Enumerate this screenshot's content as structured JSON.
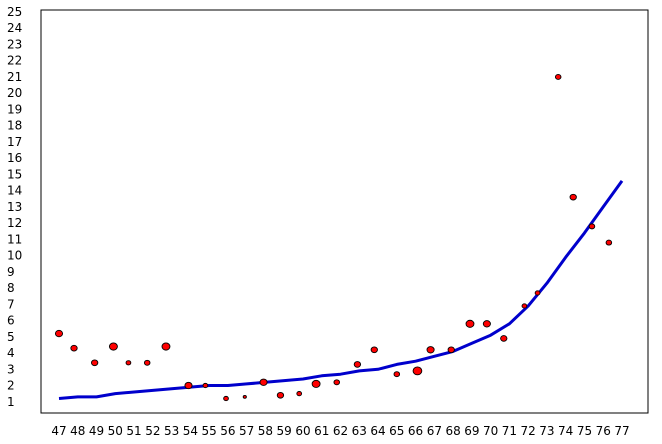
{
  "chart_data": {
    "type": "scatter",
    "title": "",
    "xlabel": "",
    "ylabel": "",
    "xlim": [
      46,
      78
    ],
    "ylim": [
      0,
      25
    ],
    "grid": false,
    "x_ticks": [
      47,
      48,
      49,
      50,
      51,
      52,
      53,
      54,
      55,
      56,
      57,
      58,
      59,
      60,
      61,
      62,
      63,
      64,
      65,
      66,
      67,
      68,
      69,
      70,
      71,
      72,
      73,
      74,
      75,
      76,
      77
    ],
    "y_ticks": [
      1,
      2,
      3,
      4,
      5,
      6,
      7,
      8,
      9,
      10,
      11,
      12,
      13,
      14,
      15,
      16,
      17,
      18,
      19,
      20,
      21,
      22,
      23,
      24,
      25
    ],
    "series": [
      {
        "kind": "points",
        "color": "#ff0000",
        "outline": "#000000",
        "points": [
          {
            "x": 47,
            "y": 5.2,
            "s": 0.9
          },
          {
            "x": 47.8,
            "y": 4.3,
            "s": 0.8
          },
          {
            "x": 48.9,
            "y": 3.4,
            "s": 0.8
          },
          {
            "x": 49.9,
            "y": 4.4,
            "s": 1.0
          },
          {
            "x": 50.7,
            "y": 3.4,
            "s": 0.6
          },
          {
            "x": 51.7,
            "y": 3.4,
            "s": 0.7
          },
          {
            "x": 52.7,
            "y": 4.4,
            "s": 1.0
          },
          {
            "x": 53.9,
            "y": 2.0,
            "s": 0.9
          },
          {
            "x": 54.8,
            "y": 2.0,
            "s": 0.6
          },
          {
            "x": 55.9,
            "y": 1.2,
            "s": 0.6
          },
          {
            "x": 56.9,
            "y": 1.3,
            "s": 0.4
          },
          {
            "x": 57.9,
            "y": 2.2,
            "s": 0.9
          },
          {
            "x": 58.8,
            "y": 1.4,
            "s": 0.8
          },
          {
            "x": 59.8,
            "y": 1.5,
            "s": 0.6
          },
          {
            "x": 60.7,
            "y": 2.1,
            "s": 1.0
          },
          {
            "x": 61.8,
            "y": 2.2,
            "s": 0.7
          },
          {
            "x": 62.9,
            "y": 3.3,
            "s": 0.8
          },
          {
            "x": 63.8,
            "y": 4.2,
            "s": 0.8
          },
          {
            "x": 65.0,
            "y": 2.7,
            "s": 0.7
          },
          {
            "x": 66.1,
            "y": 2.9,
            "s": 1.1
          },
          {
            "x": 66.8,
            "y": 4.2,
            "s": 0.9
          },
          {
            "x": 67.9,
            "y": 4.2,
            "s": 0.8
          },
          {
            "x": 68.9,
            "y": 5.8,
            "s": 1.0
          },
          {
            "x": 69.8,
            "y": 5.8,
            "s": 0.9
          },
          {
            "x": 70.7,
            "y": 4.9,
            "s": 0.8
          },
          {
            "x": 71.8,
            "y": 6.9,
            "s": 0.6
          },
          {
            "x": 72.5,
            "y": 7.7,
            "s": 0.6
          },
          {
            "x": 73.6,
            "y": 21.0,
            "s": 0.7
          },
          {
            "x": 74.4,
            "y": 13.6,
            "s": 0.8
          },
          {
            "x": 75.4,
            "y": 11.8,
            "s": 0.7
          },
          {
            "x": 76.3,
            "y": 10.8,
            "s": 0.7
          }
        ]
      },
      {
        "kind": "line",
        "color": "#0000cc",
        "points": [
          {
            "x": 47,
            "y": 1.2
          },
          {
            "x": 48,
            "y": 1.3
          },
          {
            "x": 49,
            "y": 1.3
          },
          {
            "x": 50,
            "y": 1.5
          },
          {
            "x": 51,
            "y": 1.6
          },
          {
            "x": 52,
            "y": 1.7
          },
          {
            "x": 53,
            "y": 1.8
          },
          {
            "x": 54,
            "y": 1.9
          },
          {
            "x": 55,
            "y": 2.0
          },
          {
            "x": 56,
            "y": 2.0
          },
          {
            "x": 57,
            "y": 2.1
          },
          {
            "x": 58,
            "y": 2.2
          },
          {
            "x": 59,
            "y": 2.3
          },
          {
            "x": 60,
            "y": 2.4
          },
          {
            "x": 61,
            "y": 2.6
          },
          {
            "x": 62,
            "y": 2.7
          },
          {
            "x": 63,
            "y": 2.9
          },
          {
            "x": 64,
            "y": 3.0
          },
          {
            "x": 65,
            "y": 3.3
          },
          {
            "x": 66,
            "y": 3.5
          },
          {
            "x": 67,
            "y": 3.8
          },
          {
            "x": 68,
            "y": 4.1
          },
          {
            "x": 69,
            "y": 4.6
          },
          {
            "x": 70,
            "y": 5.1
          },
          {
            "x": 71,
            "y": 5.8
          },
          {
            "x": 72,
            "y": 6.9
          },
          {
            "x": 73,
            "y": 8.3
          },
          {
            "x": 74,
            "y": 9.9
          },
          {
            "x": 75,
            "y": 11.4
          },
          {
            "x": 76,
            "y": 13.0
          },
          {
            "x": 77,
            "y": 14.6
          }
        ]
      }
    ]
  }
}
